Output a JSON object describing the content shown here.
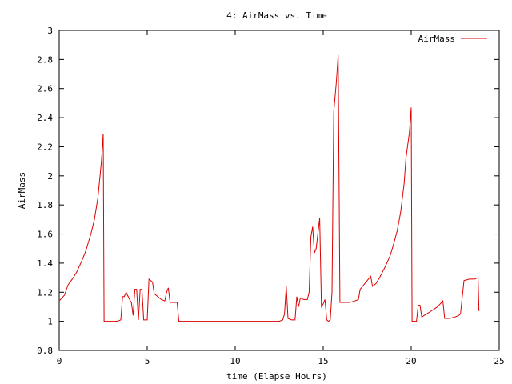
{
  "chart_data": {
    "type": "line",
    "title": "4: AirMass vs. Time",
    "xlabel": "time (Elapse Hours)",
    "ylabel": "AirMass",
    "xlim": [
      0,
      25
    ],
    "ylim": [
      0.8,
      3
    ],
    "xticks": [
      0,
      5,
      10,
      15,
      20,
      25
    ],
    "yticks": [
      0.8,
      1,
      1.2,
      1.4,
      1.6,
      1.8,
      2,
      2.2,
      2.4,
      2.6,
      2.8,
      3
    ],
    "grid": false,
    "legend_position": "top-right",
    "series": [
      {
        "name": "AirMass",
        "color": "#dd0000",
        "points": [
          [
            0.0,
            1.14
          ],
          [
            0.3,
            1.18
          ],
          [
            0.5,
            1.25
          ],
          [
            0.8,
            1.3
          ],
          [
            1.0,
            1.34
          ],
          [
            1.3,
            1.42
          ],
          [
            1.5,
            1.48
          ],
          [
            1.8,
            1.6
          ],
          [
            2.0,
            1.7
          ],
          [
            2.2,
            1.85
          ],
          [
            2.4,
            2.1
          ],
          [
            2.5,
            2.29
          ],
          [
            2.55,
            1.0
          ],
          [
            3.0,
            1.0
          ],
          [
            3.3,
            1.0
          ],
          [
            3.5,
            1.01
          ],
          [
            3.6,
            1.17
          ],
          [
            3.7,
            1.17
          ],
          [
            3.8,
            1.2
          ],
          [
            4.0,
            1.15
          ],
          [
            4.1,
            1.13
          ],
          [
            4.2,
            1.04
          ],
          [
            4.3,
            1.22
          ],
          [
            4.4,
            1.22
          ],
          [
            4.5,
            1.01
          ],
          [
            4.6,
            1.22
          ],
          [
            4.7,
            1.22
          ],
          [
            4.8,
            1.01
          ],
          [
            4.9,
            1.01
          ],
          [
            5.0,
            1.01
          ],
          [
            5.1,
            1.29
          ],
          [
            5.3,
            1.27
          ],
          [
            5.4,
            1.19
          ],
          [
            5.6,
            1.17
          ],
          [
            5.8,
            1.15
          ],
          [
            6.0,
            1.14
          ],
          [
            6.1,
            1.2
          ],
          [
            6.2,
            1.23
          ],
          [
            6.3,
            1.13
          ],
          [
            6.5,
            1.13
          ],
          [
            6.7,
            1.13
          ],
          [
            6.8,
            1.0
          ],
          [
            7.0,
            1.0
          ],
          [
            8.0,
            1.0
          ],
          [
            9.0,
            1.0
          ],
          [
            10.0,
            1.0
          ],
          [
            11.0,
            1.0
          ],
          [
            12.0,
            1.0
          ],
          [
            12.5,
            1.0
          ],
          [
            12.7,
            1.01
          ],
          [
            12.8,
            1.05
          ],
          [
            12.9,
            1.24
          ],
          [
            13.0,
            1.02
          ],
          [
            13.2,
            1.01
          ],
          [
            13.4,
            1.01
          ],
          [
            13.5,
            1.17
          ],
          [
            13.6,
            1.1
          ],
          [
            13.7,
            1.16
          ],
          [
            13.9,
            1.15
          ],
          [
            14.1,
            1.15
          ],
          [
            14.2,
            1.2
          ],
          [
            14.3,
            1.58
          ],
          [
            14.4,
            1.65
          ],
          [
            14.5,
            1.47
          ],
          [
            14.6,
            1.5
          ],
          [
            14.8,
            1.71
          ],
          [
            14.9,
            1.1
          ],
          [
            15.0,
            1.12
          ],
          [
            15.1,
            1.15
          ],
          [
            15.2,
            1.01
          ],
          [
            15.3,
            1.0
          ],
          [
            15.4,
            1.01
          ],
          [
            15.5,
            1.2
          ],
          [
            15.6,
            2.44
          ],
          [
            15.75,
            2.65
          ],
          [
            15.85,
            2.83
          ],
          [
            15.95,
            1.13
          ],
          [
            16.2,
            1.13
          ],
          [
            16.5,
            1.13
          ],
          [
            16.8,
            1.14
          ],
          [
            17.0,
            1.15
          ],
          [
            17.1,
            1.22
          ],
          [
            17.3,
            1.25
          ],
          [
            17.5,
            1.28
          ],
          [
            17.7,
            1.31
          ],
          [
            17.8,
            1.24
          ],
          [
            18.0,
            1.26
          ],
          [
            18.2,
            1.3
          ],
          [
            18.5,
            1.37
          ],
          [
            18.8,
            1.45
          ],
          [
            19.0,
            1.53
          ],
          [
            19.2,
            1.62
          ],
          [
            19.4,
            1.75
          ],
          [
            19.6,
            1.95
          ],
          [
            19.7,
            2.12
          ],
          [
            19.9,
            2.3
          ],
          [
            20.0,
            2.47
          ],
          [
            20.05,
            1.0
          ],
          [
            20.3,
            1.0
          ],
          [
            20.4,
            1.11
          ],
          [
            20.5,
            1.11
          ],
          [
            20.6,
            1.03
          ],
          [
            21.0,
            1.06
          ],
          [
            21.5,
            1.1
          ],
          [
            21.8,
            1.14
          ],
          [
            21.9,
            1.02
          ],
          [
            22.2,
            1.02
          ],
          [
            22.5,
            1.03
          ],
          [
            22.7,
            1.04
          ],
          [
            22.8,
            1.05
          ],
          [
            23.0,
            1.28
          ],
          [
            23.3,
            1.29
          ],
          [
            23.6,
            1.29
          ],
          [
            23.8,
            1.3
          ],
          [
            23.85,
            1.07
          ]
        ]
      }
    ]
  }
}
